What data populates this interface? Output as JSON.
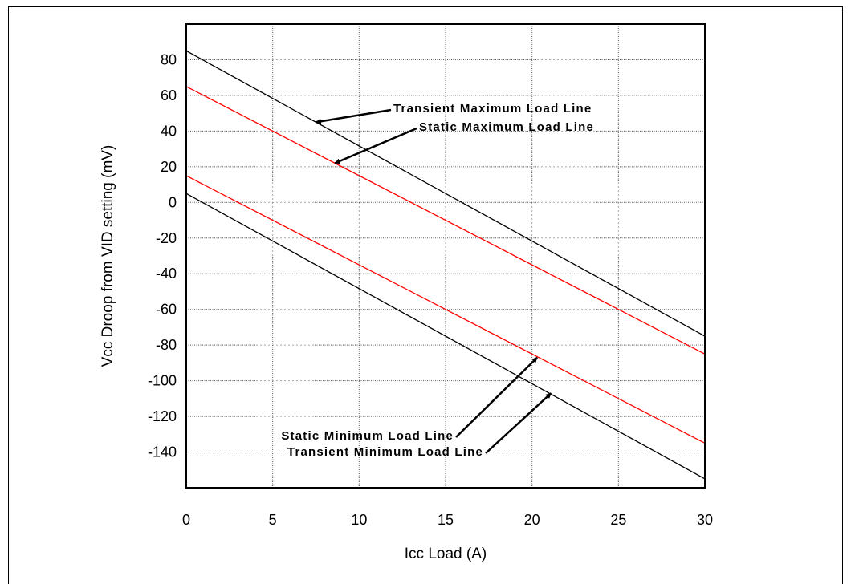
{
  "chart_data": {
    "type": "line",
    "xlabel": "Icc Load (A)",
    "ylabel": "Vcc Droop from VID setting (mV)",
    "xlim": [
      0,
      30
    ],
    "ylim": [
      -160,
      100
    ],
    "x_ticks": [
      0,
      5,
      10,
      15,
      20,
      25,
      30
    ],
    "y_ticks": [
      80,
      60,
      40,
      20,
      0,
      -20,
      -40,
      -60,
      -80,
      -100,
      -120,
      -140
    ],
    "grid": true,
    "series": [
      {
        "name": "Transient Maximum Load Line",
        "color": "#000000",
        "x": [
          0,
          30
        ],
        "y": [
          85,
          -75
        ]
      },
      {
        "name": "Static Maximum Load Line",
        "color": "#ff0000",
        "x": [
          0,
          30
        ],
        "y": [
          65,
          -85
        ]
      },
      {
        "name": "Static Minimum Load Line",
        "color": "#ff0000",
        "x": [
          0,
          30
        ],
        "y": [
          15,
          -135
        ]
      },
      {
        "name": "Transient Minimum Load Line",
        "color": "#000000",
        "x": [
          0,
          30
        ],
        "y": [
          5,
          -155
        ]
      }
    ],
    "annotations": [
      {
        "text": "Transient Maximum Load Line",
        "points_to": [
          7.5,
          45
        ]
      },
      {
        "text": "Static Maximum Load Line",
        "points_to": [
          8.6,
          22
        ]
      },
      {
        "text": "Static Minimum Load Line",
        "points_to": [
          20.3,
          -87
        ]
      },
      {
        "text": "Transient Minimum Load Line",
        "points_to": [
          21.1,
          -107
        ]
      }
    ]
  }
}
